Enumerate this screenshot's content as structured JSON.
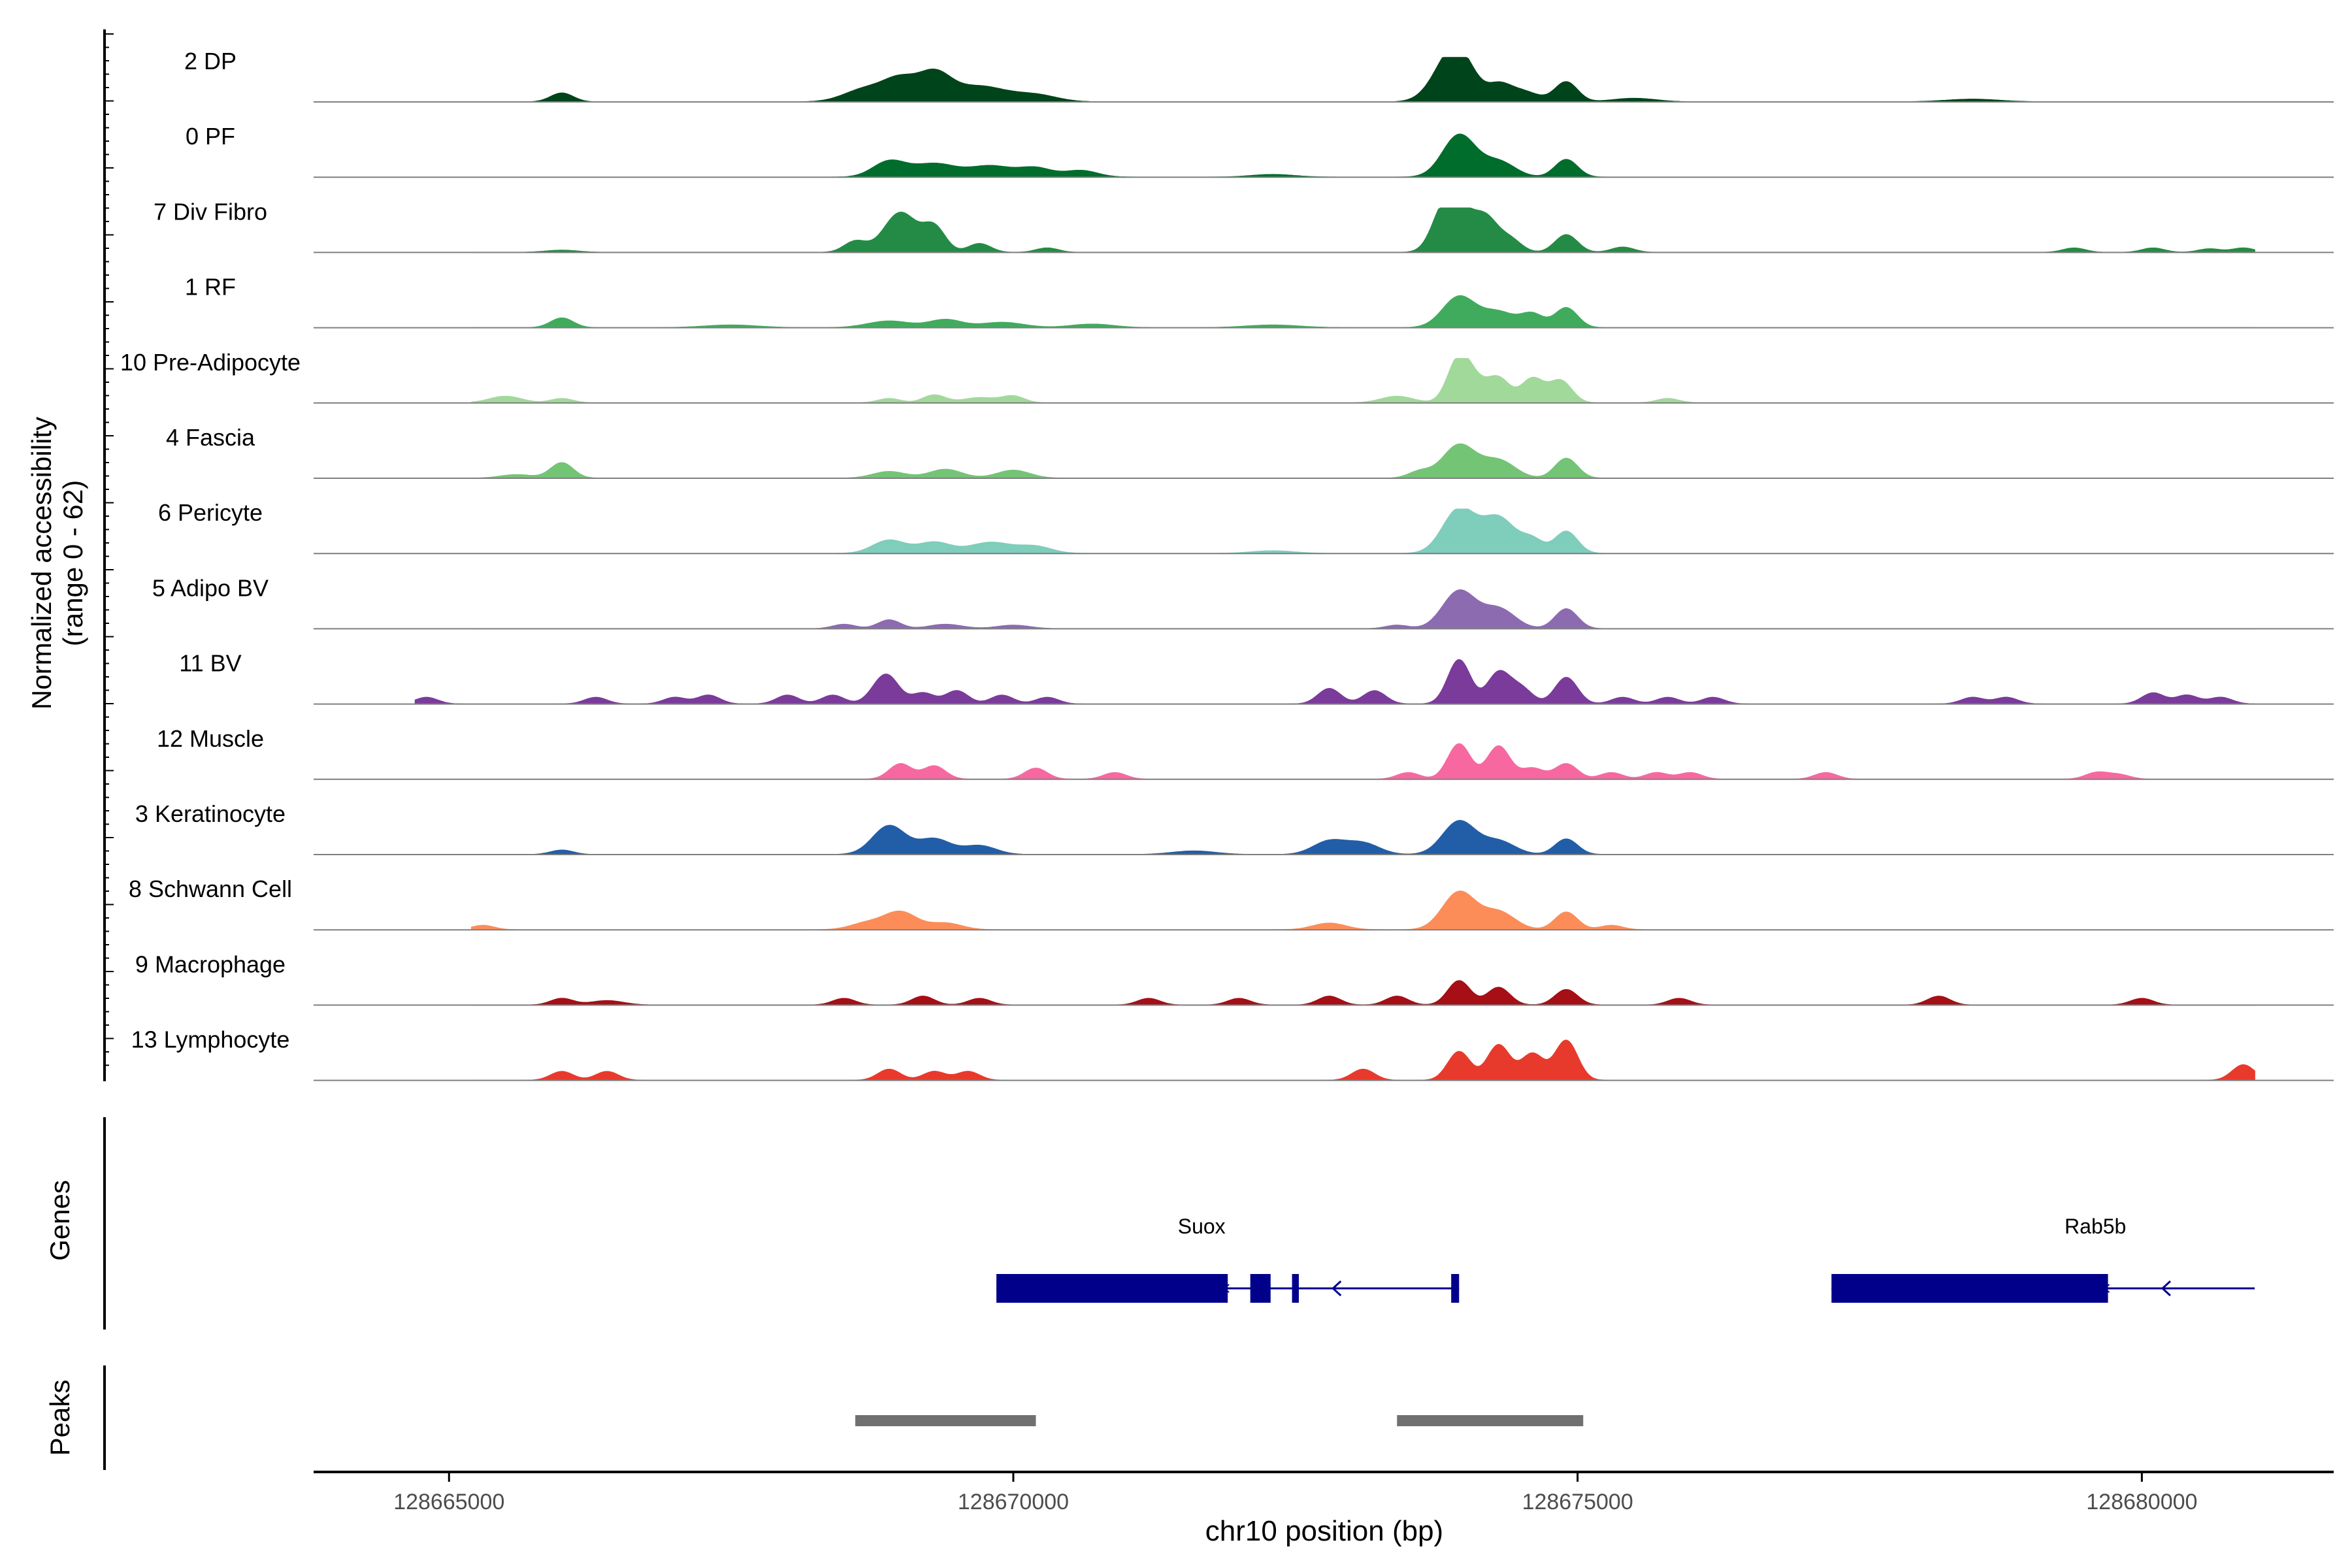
{
  "chart_data": {
    "type": "area",
    "y_axis_label_line1": "Normalized accessibility",
    "y_axis_label_line2": "(range 0 - 62)",
    "ylim": [
      0,
      62
    ],
    "genes_label": "Genes",
    "peaks_label": "Peaks",
    "xlabel": "chr10 position (bp)",
    "xlim": [
      128663800,
      128681700
    ],
    "x_ticks": [
      128665000,
      128670000,
      128675000,
      128680000
    ],
    "x_tick_labels": [
      "128665000",
      "128670000",
      "128675000",
      "128680000"
    ],
    "tracks": [
      {
        "name": "2 DP",
        "color": "#00441b",
        "peaks": [
          [
            128666000,
            0.2,
            1
          ],
          [
            128668700,
            0.3,
            3
          ],
          [
            128669000,
            0.45,
            2
          ],
          [
            128669300,
            0.6,
            2
          ],
          [
            128669700,
            0.35,
            4
          ],
          [
            128670200,
            0.15,
            3
          ],
          [
            128673950,
            1.0,
            2
          ],
          [
            128673800,
            0.4,
            2
          ],
          [
            128674300,
            0.3,
            1
          ],
          [
            128674500,
            0.25,
            2
          ],
          [
            128674900,
            0.45,
            1
          ],
          [
            128675500,
            0.08,
            3
          ],
          [
            128678500,
            0.06,
            4
          ]
        ],
        "baseline": [
          128665200,
          128681000
        ]
      },
      {
        "name": "0 PF",
        "color": "#006d2c",
        "peaks": [
          [
            128668900,
            0.35,
            2
          ],
          [
            128669300,
            0.3,
            3
          ],
          [
            128669800,
            0.25,
            3
          ],
          [
            128670200,
            0.2,
            2
          ],
          [
            128670600,
            0.15,
            2
          ],
          [
            128673950,
            0.95,
            2
          ],
          [
            128674300,
            0.35,
            2
          ],
          [
            128674900,
            0.4,
            1
          ],
          [
            128672300,
            0.06,
            3
          ]
        ],
        "baseline": [
          128665200,
          128681000
        ]
      },
      {
        "name": "7 Div Fibro",
        "color": "#238b45",
        "peaks": [
          [
            128666000,
            0.05,
            2
          ],
          [
            128668600,
            0.25,
            1
          ],
          [
            128669000,
            0.9,
            2
          ],
          [
            128669300,
            0.55,
            1
          ],
          [
            128669700,
            0.2,
            1
          ],
          [
            128670300,
            0.1,
            1
          ],
          [
            128673950,
            1.0,
            2
          ],
          [
            128673800,
            0.55,
            1
          ],
          [
            128674200,
            0.6,
            1
          ],
          [
            128674400,
            0.3,
            1
          ],
          [
            128674900,
            0.4,
            1
          ],
          [
            128675400,
            0.12,
            1
          ],
          [
            128679400,
            0.1,
            1
          ],
          [
            128680100,
            0.1,
            1
          ],
          [
            128680600,
            0.08,
            1
          ],
          [
            128680900,
            0.1,
            1
          ]
        ],
        "baseline": [
          128665200,
          128681000
        ]
      },
      {
        "name": "1 RF",
        "color": "#41ab5d",
        "peaks": [
          [
            128666000,
            0.22,
            1
          ],
          [
            128667500,
            0.06,
            4
          ],
          [
            128668900,
            0.15,
            3
          ],
          [
            128669400,
            0.18,
            2
          ],
          [
            128669900,
            0.12,
            3
          ],
          [
            128670700,
            0.08,
            3
          ],
          [
            128673950,
            0.7,
            2
          ],
          [
            128674300,
            0.35,
            2
          ],
          [
            128674600,
            0.3,
            1
          ],
          [
            128674900,
            0.45,
            1
          ],
          [
            128672300,
            0.06,
            4
          ]
        ],
        "baseline": [
          128665200,
          128681000
        ]
      },
      {
        "name": "10 Pre-Adipocyte",
        "color": "#a1d99b",
        "peaks": [
          [
            128665500,
            0.15,
            2
          ],
          [
            128666000,
            0.1,
            1
          ],
          [
            128668900,
            0.1,
            1
          ],
          [
            128669300,
            0.18,
            1
          ],
          [
            128669700,
            0.12,
            2
          ],
          [
            128670000,
            0.15,
            1
          ],
          [
            128673400,
            0.15,
            2
          ],
          [
            128673950,
            1.0,
            1
          ],
          [
            128674300,
            0.55,
            1
          ],
          [
            128674600,
            0.55,
            1
          ],
          [
            128674850,
            0.5,
            1
          ],
          [
            128674100,
            0.35,
            1
          ],
          [
            128675800,
            0.1,
            1
          ]
        ],
        "baseline": [
          128665200,
          128681000
        ]
      },
      {
        "name": "4 Fascia",
        "color": "#74c476",
        "peaks": [
          [
            128666000,
            0.35,
            1
          ],
          [
            128665600,
            0.08,
            2
          ],
          [
            128668900,
            0.15,
            2
          ],
          [
            128669400,
            0.2,
            2
          ],
          [
            128670000,
            0.18,
            2
          ],
          [
            128673950,
            0.75,
            2
          ],
          [
            128674300,
            0.4,
            2
          ],
          [
            128674900,
            0.45,
            1
          ],
          [
            128673600,
            0.15,
            1
          ]
        ],
        "baseline": [
          128665200,
          128681000
        ]
      },
      {
        "name": "6 Pericyte",
        "color": "#7fcdbb",
        "peaks": [
          [
            128668900,
            0.3,
            2
          ],
          [
            128669300,
            0.25,
            2
          ],
          [
            128669800,
            0.25,
            3
          ],
          [
            128670200,
            0.15,
            2
          ],
          [
            128673950,
            1.0,
            2
          ],
          [
            128674300,
            0.8,
            2
          ],
          [
            128674600,
            0.3,
            1
          ],
          [
            128674900,
            0.5,
            1
          ],
          [
            128672300,
            0.06,
            3
          ]
        ],
        "baseline": [
          128665200,
          128681000
        ]
      },
      {
        "name": "5 Adipo BV",
        "color": "#8c6bb1",
        "peaks": [
          [
            128668900,
            0.2,
            1
          ],
          [
            128668500,
            0.1,
            1
          ],
          [
            128669400,
            0.1,
            2
          ],
          [
            128670000,
            0.08,
            2
          ],
          [
            128673950,
            0.85,
            2
          ],
          [
            128674300,
            0.45,
            2
          ],
          [
            128674900,
            0.45,
            1
          ],
          [
            128673400,
            0.08,
            1
          ]
        ],
        "baseline": [
          128665200,
          128681000
        ]
      },
      {
        "name": "11 BV",
        "color": "#7a3b9a",
        "peaks": [
          [
            128664800,
            0.15,
            1
          ],
          [
            128666300,
            0.15,
            1
          ],
          [
            128667000,
            0.15,
            1
          ],
          [
            128667300,
            0.2,
            1
          ],
          [
            128668000,
            0.2,
            1
          ],
          [
            128668400,
            0.2,
            1
          ],
          [
            128668800,
            0.25,
            1
          ],
          [
            128668900,
            0.5,
            1
          ],
          [
            128669200,
            0.25,
            1
          ],
          [
            128669500,
            0.3,
            1
          ],
          [
            128669900,
            0.2,
            1
          ],
          [
            128670300,
            0.15,
            1
          ],
          [
            128672800,
            0.35,
            1
          ],
          [
            128673200,
            0.3,
            1
          ],
          [
            128673950,
            1.0,
            1
          ],
          [
            128674300,
            0.7,
            1
          ],
          [
            128674500,
            0.35,
            1
          ],
          [
            128674900,
            0.6,
            1
          ],
          [
            128675400,
            0.15,
            1
          ],
          [
            128675800,
            0.15,
            1
          ],
          [
            128676200,
            0.15,
            1
          ],
          [
            128678500,
            0.15,
            1
          ],
          [
            128678800,
            0.15,
            1
          ],
          [
            128680100,
            0.25,
            1
          ],
          [
            128680400,
            0.2,
            1
          ],
          [
            128680700,
            0.15,
            1
          ]
        ],
        "baseline": [
          128664700,
          128681000
        ]
      },
      {
        "name": "12 Muscle",
        "color": "#f768a1",
        "peaks": [
          [
            128669000,
            0.35,
            1
          ],
          [
            128669300,
            0.3,
            1
          ],
          [
            128670200,
            0.25,
            1
          ],
          [
            128670900,
            0.15,
            1
          ],
          [
            128673500,
            0.15,
            1
          ],
          [
            128673950,
            0.8,
            1
          ],
          [
            128674300,
            0.75,
            1
          ],
          [
            128674600,
            0.25,
            1
          ],
          [
            128674900,
            0.35,
            1
          ],
          [
            128675300,
            0.15,
            1
          ],
          [
            128675700,
            0.15,
            1
          ],
          [
            128676000,
            0.15,
            1
          ],
          [
            128677200,
            0.15,
            1
          ],
          [
            128679600,
            0.15,
            1
          ],
          [
            128679800,
            0.1,
            1
          ]
        ],
        "baseline": [
          128665200,
          128681000
        ]
      },
      {
        "name": "3 Keratinocyte",
        "color": "#225ea8",
        "peaks": [
          [
            128666000,
            0.1,
            1
          ],
          [
            128668900,
            0.65,
            2
          ],
          [
            128669300,
            0.35,
            2
          ],
          [
            128669700,
            0.2,
            2
          ],
          [
            128672800,
            0.3,
            2
          ],
          [
            128673100,
            0.25,
            2
          ],
          [
            128673950,
            0.75,
            2
          ],
          [
            128674300,
            0.3,
            2
          ],
          [
            128674900,
            0.35,
            1
          ],
          [
            128671600,
            0.08,
            3
          ]
        ],
        "baseline": [
          128665200,
          128681000
        ]
      },
      {
        "name": "8 Schwann Cell",
        "color": "#fc8d59",
        "peaks": [
          [
            128665300,
            0.1,
            1
          ],
          [
            128668700,
            0.15,
            2
          ],
          [
            128669000,
            0.4,
            2
          ],
          [
            128669400,
            0.15,
            2
          ],
          [
            128672800,
            0.15,
            2
          ],
          [
            128673950,
            0.85,
            2
          ],
          [
            128674300,
            0.4,
            2
          ],
          [
            128674900,
            0.4,
            1
          ],
          [
            128675300,
            0.1,
            1
          ]
        ],
        "baseline": [
          128665200,
          128681000
        ]
      },
      {
        "name": "9 Macrophage",
        "color": "#a50f15",
        "peaks": [
          [
            128666000,
            0.15,
            1
          ],
          [
            128666400,
            0.1,
            2
          ],
          [
            128668500,
            0.15,
            1
          ],
          [
            128669200,
            0.2,
            1
          ],
          [
            128669700,
            0.15,
            1
          ],
          [
            128671200,
            0.15,
            1
          ],
          [
            128672000,
            0.15,
            1
          ],
          [
            128672800,
            0.2,
            1
          ],
          [
            128673400,
            0.2,
            1
          ],
          [
            128673950,
            0.55,
            1
          ],
          [
            128674300,
            0.4,
            1
          ],
          [
            128674900,
            0.35,
            1
          ],
          [
            128675900,
            0.15,
            1
          ],
          [
            128678200,
            0.2,
            1
          ],
          [
            128680000,
            0.15,
            1
          ]
        ],
        "baseline": [
          128665200,
          128681000
        ]
      },
      {
        "name": "13 Lymphocyte",
        "color": "#e83a2c",
        "peaks": [
          [
            128666000,
            0.2,
            1
          ],
          [
            128666400,
            0.2,
            1
          ],
          [
            128668900,
            0.25,
            1
          ],
          [
            128669300,
            0.2,
            1
          ],
          [
            128669600,
            0.2,
            1
          ],
          [
            128673100,
            0.25,
            1
          ],
          [
            128673950,
            0.65,
            1
          ],
          [
            128674300,
            0.8,
            1
          ],
          [
            128674600,
            0.6,
            1
          ],
          [
            128674900,
            0.9,
            1
          ],
          [
            128680900,
            0.35,
            1
          ]
        ],
        "baseline": [
          128665200,
          128681000
        ]
      }
    ],
    "genes": [
      {
        "name": "Suox",
        "strand": "-",
        "start": 128669850,
        "end": 128673950,
        "exons": [
          [
            128669850,
            128671900
          ],
          [
            128672100,
            128672280
          ],
          [
            128672470,
            128672530
          ],
          [
            128673880,
            128673950
          ]
        ],
        "arrows": [
          128672850
        ]
      },
      {
        "name": "Rab5b",
        "strand": "-",
        "start": 128677250,
        "end": 128681000,
        "exons": [
          [
            128677250,
            128679700
          ]
        ],
        "arrows": [
          128680200
        ]
      }
    ],
    "peaks": [
      {
        "start": 128668600,
        "end": 128670200
      },
      {
        "start": 128673400,
        "end": 128675050
      }
    ]
  }
}
